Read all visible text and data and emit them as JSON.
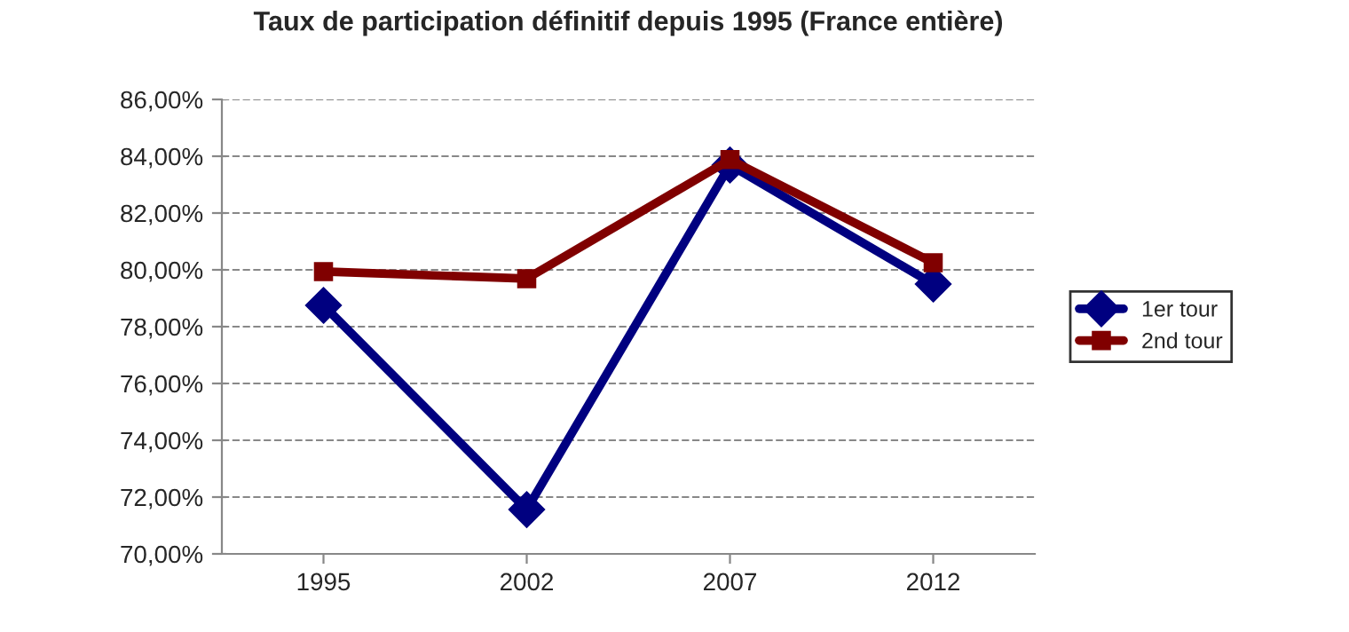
{
  "chart_data": {
    "type": "line",
    "title": "Taux de participation définitif depuis 1995 (France entière)",
    "categories": [
      "1995",
      "2002",
      "2007",
      "2012"
    ],
    "series": [
      {
        "name": "1er tour",
        "color": "#000080",
        "marker": "diamond",
        "values": [
          78.75,
          71.56,
          83.69,
          79.5
        ]
      },
      {
        "name": "2nd tour",
        "color": "#800000",
        "marker": "square",
        "values": [
          79.94,
          79.69,
          83.88,
          80.25
        ]
      }
    ],
    "ylim": [
      70,
      86
    ],
    "yticks": [
      {
        "value": 70,
        "label": "70,00%"
      },
      {
        "value": 72,
        "label": "72,00%"
      },
      {
        "value": 74,
        "label": "74,00%"
      },
      {
        "value": 76,
        "label": "76,00%"
      },
      {
        "value": 78,
        "label": "78,00%"
      },
      {
        "value": 80,
        "label": "80,00%"
      },
      {
        "value": 82,
        "label": "82,00%"
      },
      {
        "value": 84,
        "label": "84,00%"
      },
      {
        "value": 86,
        "label": "86,00%"
      }
    ],
    "grid": "y",
    "line_style": "solid",
    "legend": "right"
  }
}
